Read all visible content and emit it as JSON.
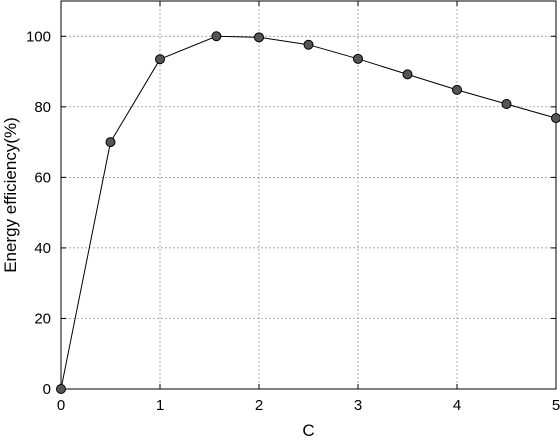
{
  "chart_data": {
    "type": "line",
    "title": "",
    "xlabel": "C",
    "ylabel": "Energy efficiency(%)",
    "xlim": [
      0,
      5
    ],
    "ylim": [
      0,
      110
    ],
    "x_ticks": [
      0,
      1,
      2,
      3,
      4,
      5
    ],
    "y_ticks": [
      0,
      20,
      40,
      60,
      80,
      100
    ],
    "x_tick_labels": [
      "0",
      "1",
      "2",
      "3",
      "4",
      "5"
    ],
    "y_tick_labels": [
      "0",
      "20",
      "40",
      "60",
      "80",
      "100"
    ],
    "grid": true,
    "legend": "none",
    "series": [
      {
        "x": [
          0,
          0.5,
          1,
          1.57,
          2,
          2.5,
          3,
          3.5,
          4,
          4.5,
          5
        ],
        "y": [
          0,
          70,
          93.5,
          100,
          99.7,
          97.6,
          93.6,
          89.2,
          84.8,
          80.8,
          76.8
        ]
      }
    ],
    "colors": {
      "line": "#000000",
      "marker_fill": "#555555",
      "marker_edge": "#000000",
      "grid": "#8a8a8a"
    }
  }
}
